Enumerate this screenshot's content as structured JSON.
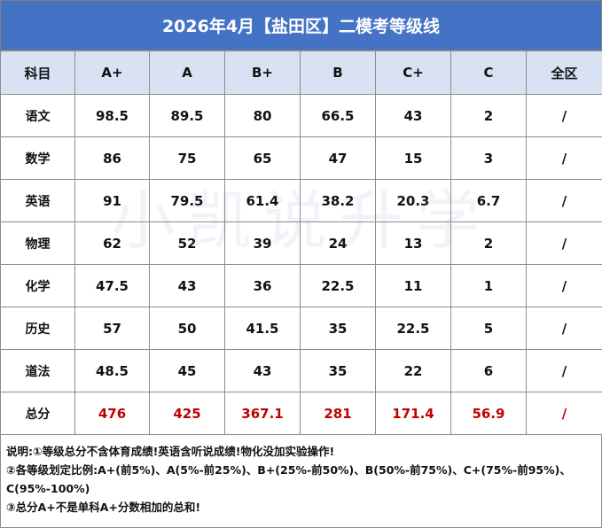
{
  "title": "2026年4月【盐田区】二模考等级线",
  "headers": [
    "科目",
    "A+",
    "A",
    "B+",
    "B",
    "C+",
    "C",
    "全区"
  ],
  "rows": [
    {
      "subject": "语文",
      "values": [
        "98.5",
        "89.5",
        "80",
        "66.5",
        "43",
        "2",
        "/"
      ]
    },
    {
      "subject": "数学",
      "values": [
        "86",
        "75",
        "65",
        "47",
        "15",
        "3",
        "/"
      ]
    },
    {
      "subject": "英语",
      "values": [
        "91",
        "79.5",
        "61.4",
        "38.2",
        "20.3",
        "6.7",
        "/"
      ]
    },
    {
      "subject": "物理",
      "values": [
        "62",
        "52",
        "39",
        "24",
        "13",
        "2",
        "/"
      ]
    },
    {
      "subject": "化学",
      "values": [
        "47.5",
        "43",
        "36",
        "22.5",
        "11",
        "1",
        "/"
      ]
    },
    {
      "subject": "历史",
      "values": [
        "57",
        "50",
        "41.5",
        "35",
        "22.5",
        "5",
        "/"
      ]
    },
    {
      "subject": "道法",
      "values": [
        "48.5",
        "45",
        "43",
        "35",
        "22",
        "6",
        "/"
      ]
    },
    {
      "subject": "总分",
      "values": [
        "476",
        "425",
        "367.1",
        "281",
        "171.4",
        "56.9",
        "/"
      ]
    }
  ],
  "notes": [
    "说明:①等级总分不含体育成绩!英语含听说成绩!物化没加实验操作!",
    "②各等级划定比例:A+(前5%)、A(5%-前25%)、B+(25%-前50%)、B(50%-前75%)、C+(75%-前95%)、",
    "C(95%-100%)",
    "③总分A+不是单科A+分数相加的总和!"
  ],
  "watermark": "小凯说升学",
  "colors": {
    "header_bg": "#4472C4",
    "col_header_bg": "#D9E2F3",
    "total_red": "#C00000"
  }
}
